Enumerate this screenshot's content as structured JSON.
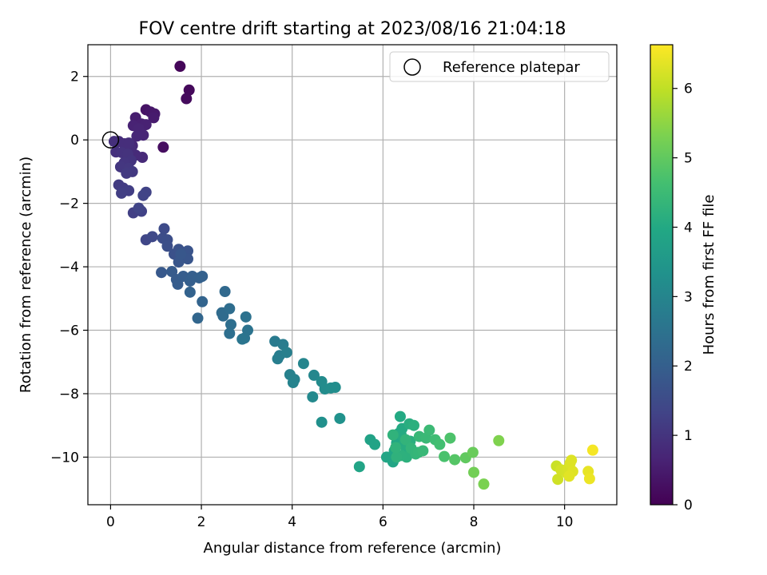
{
  "chart_data": {
    "type": "scatter",
    "title": "FOV centre drift starting at 2023/08/16 21:04:18",
    "xlabel": "Angular distance from reference (arcmin)",
    "ylabel": "Rotation from reference (arcmin)",
    "xlim": [
      -0.5,
      11.15
    ],
    "ylim": [
      -11.5,
      3.0
    ],
    "xticks": [
      0,
      2,
      4,
      6,
      8,
      10
    ],
    "yticks": [
      2,
      0,
      -2,
      -4,
      -6,
      -8,
      -10
    ],
    "xtick_labels": [
      "0",
      "2",
      "4",
      "6",
      "8",
      "10"
    ],
    "ytick_labels": [
      "2",
      "0",
      "−2",
      "−4",
      "−6",
      "−8",
      "−10"
    ],
    "grid": true,
    "legend": {
      "position": "top-right",
      "entries": [
        "Reference platepar"
      ]
    },
    "reference_point": {
      "x": 0,
      "y": 0,
      "marker": "open-circle"
    },
    "colorbar": {
      "label": "Hours from first FF file",
      "colormap": "viridis",
      "range": [
        0,
        6.63
      ],
      "ticks": [
        0,
        1,
        2,
        3,
        4,
        5,
        6
      ],
      "tick_labels": [
        "0",
        "1",
        "2",
        "3",
        "4",
        "5",
        "6"
      ]
    },
    "series": [
      {
        "points": [
          [
            1.53,
            2.32,
            0.1
          ],
          [
            1.73,
            1.57,
            0.15
          ],
          [
            1.67,
            1.3,
            0.18
          ],
          [
            1.16,
            -0.23,
            0.25
          ],
          [
            0.78,
            0.95,
            0.35
          ],
          [
            0.88,
            0.88,
            0.4
          ],
          [
            0.97,
            0.82,
            0.45
          ],
          [
            0.95,
            0.7,
            0.5
          ],
          [
            0.55,
            0.7,
            0.55
          ],
          [
            0.68,
            0.5,
            0.6
          ],
          [
            0.78,
            0.48,
            0.62
          ],
          [
            0.5,
            0.45,
            0.65
          ],
          [
            0.62,
            0.35,
            0.68
          ],
          [
            0.72,
            0.15,
            0.7
          ],
          [
            0.58,
            0.12,
            0.72
          ],
          [
            0.48,
            -0.18,
            0.75
          ],
          [
            0.7,
            -0.55,
            0.78
          ],
          [
            0.55,
            -0.48,
            0.8
          ],
          [
            0.45,
            -0.3,
            0.82
          ],
          [
            0.18,
            -0.05,
            0.85
          ],
          [
            0.3,
            -0.12,
            0.87
          ],
          [
            0.4,
            -0.1,
            0.88
          ],
          [
            0.08,
            -0.05,
            0.9
          ],
          [
            0.12,
            -0.38,
            0.92
          ],
          [
            0.25,
            -0.4,
            0.95
          ],
          [
            0.38,
            -0.45,
            0.97
          ],
          [
            0.45,
            -0.65,
            1.0
          ],
          [
            0.3,
            -0.72,
            1.02
          ],
          [
            0.22,
            -0.85,
            1.05
          ],
          [
            0.4,
            -0.9,
            1.07
          ],
          [
            0.48,
            -1.0,
            1.1
          ],
          [
            0.35,
            -1.05,
            1.12
          ],
          [
            0.18,
            -1.42,
            1.15
          ],
          [
            0.28,
            -1.52,
            1.17
          ],
          [
            0.4,
            -1.6,
            1.2
          ],
          [
            0.24,
            -1.68,
            1.22
          ],
          [
            0.5,
            -2.3,
            1.25
          ],
          [
            0.68,
            -2.25,
            1.28
          ],
          [
            0.78,
            -1.65,
            1.3
          ],
          [
            0.72,
            -1.75,
            1.32
          ],
          [
            0.62,
            -2.15,
            1.35
          ],
          [
            0.78,
            -3.15,
            1.4
          ],
          [
            0.92,
            -3.05,
            1.45
          ],
          [
            1.18,
            -2.8,
            1.5
          ],
          [
            1.15,
            -3.1,
            1.55
          ],
          [
            1.25,
            -3.15,
            1.58
          ],
          [
            1.25,
            -3.35,
            1.6
          ],
          [
            1.4,
            -3.6,
            1.65
          ],
          [
            1.5,
            -3.45,
            1.68
          ],
          [
            1.6,
            -3.65,
            1.7
          ],
          [
            1.7,
            -3.5,
            1.72
          ],
          [
            1.7,
            -3.75,
            1.75
          ],
          [
            1.5,
            -3.85,
            1.78
          ],
          [
            1.55,
            -3.6,
            1.8
          ],
          [
            1.12,
            -4.18,
            1.85
          ],
          [
            1.35,
            -4.15,
            1.88
          ],
          [
            1.45,
            -4.4,
            1.9
          ],
          [
            1.48,
            -4.55,
            1.92
          ],
          [
            1.6,
            -4.3,
            1.95
          ],
          [
            1.75,
            -4.45,
            1.98
          ],
          [
            1.8,
            -4.3,
            2.0
          ],
          [
            1.95,
            -4.35,
            2.02
          ],
          [
            2.02,
            -4.3,
            2.05
          ],
          [
            1.75,
            -4.8,
            2.08
          ],
          [
            2.02,
            -5.1,
            2.12
          ],
          [
            1.92,
            -5.62,
            2.18
          ],
          [
            2.52,
            -4.78,
            2.25
          ],
          [
            2.45,
            -5.45,
            2.3
          ],
          [
            2.48,
            -5.55,
            2.32
          ],
          [
            2.62,
            -5.32,
            2.35
          ],
          [
            2.65,
            -5.82,
            2.4
          ],
          [
            2.62,
            -6.1,
            2.42
          ],
          [
            2.98,
            -5.58,
            2.48
          ],
          [
            3.02,
            -6.0,
            2.52
          ],
          [
            2.95,
            -6.25,
            2.55
          ],
          [
            2.9,
            -6.28,
            2.58
          ],
          [
            3.62,
            -6.35,
            2.7
          ],
          [
            3.8,
            -6.45,
            2.75
          ],
          [
            3.72,
            -6.8,
            2.78
          ],
          [
            3.68,
            -6.9,
            2.8
          ],
          [
            3.88,
            -6.7,
            2.83
          ],
          [
            3.95,
            -7.4,
            2.88
          ],
          [
            4.05,
            -7.55,
            2.92
          ],
          [
            4.02,
            -7.65,
            2.95
          ],
          [
            4.25,
            -7.05,
            3.0
          ],
          [
            4.48,
            -7.42,
            3.05
          ],
          [
            4.45,
            -8.1,
            3.1
          ],
          [
            4.65,
            -7.62,
            3.15
          ],
          [
            4.72,
            -7.85,
            3.18
          ],
          [
            4.85,
            -7.82,
            3.2
          ],
          [
            4.95,
            -7.8,
            3.22
          ],
          [
            4.65,
            -8.9,
            3.28
          ],
          [
            5.05,
            -8.78,
            3.35
          ],
          [
            5.48,
            -10.3,
            3.85
          ],
          [
            5.72,
            -9.45,
            3.8
          ],
          [
            5.82,
            -9.6,
            3.82
          ],
          [
            6.08,
            -10.0,
            3.88
          ],
          [
            6.22,
            -10.15,
            3.9
          ],
          [
            6.25,
            -9.8,
            3.92
          ],
          [
            6.3,
            -9.55,
            3.95
          ],
          [
            6.35,
            -9.25,
            3.98
          ],
          [
            6.38,
            -8.72,
            4.0
          ],
          [
            6.42,
            -9.1,
            4.02
          ],
          [
            6.4,
            -9.3,
            4.05
          ],
          [
            6.45,
            -9.6,
            4.07
          ],
          [
            6.52,
            -9.75,
            4.1
          ],
          [
            6.58,
            -8.95,
            4.12
          ],
          [
            6.6,
            -9.5,
            4.15
          ],
          [
            6.68,
            -9.0,
            4.17
          ],
          [
            6.52,
            -10.0,
            4.2
          ],
          [
            6.4,
            -9.95,
            4.22
          ],
          [
            6.3,
            -10.0,
            4.25
          ],
          [
            6.22,
            -9.3,
            4.27
          ],
          [
            6.28,
            -9.7,
            4.28
          ],
          [
            6.5,
            -9.45,
            4.3
          ],
          [
            6.62,
            -9.72,
            4.32
          ],
          [
            6.72,
            -9.9,
            4.35
          ],
          [
            6.78,
            -9.85,
            4.37
          ],
          [
            6.8,
            -9.35,
            4.4
          ],
          [
            6.88,
            -9.8,
            4.42
          ],
          [
            6.95,
            -9.4,
            4.45
          ],
          [
            7.02,
            -9.15,
            4.48
          ],
          [
            7.15,
            -9.45,
            4.55
          ],
          [
            7.25,
            -9.6,
            4.6
          ],
          [
            7.35,
            -9.98,
            4.7
          ],
          [
            7.48,
            -9.4,
            4.75
          ],
          [
            7.58,
            -10.08,
            4.85
          ],
          [
            7.82,
            -10.02,
            5.0
          ],
          [
            7.98,
            -9.85,
            5.1
          ],
          [
            8.0,
            -10.48,
            5.2
          ],
          [
            8.22,
            -10.85,
            5.3
          ],
          [
            8.55,
            -9.48,
            5.35
          ],
          [
            9.82,
            -10.28,
            6.1
          ],
          [
            9.85,
            -10.7,
            6.15
          ],
          [
            9.92,
            -10.4,
            6.2
          ],
          [
            10.05,
            -10.5,
            6.22
          ],
          [
            10.08,
            -10.35,
            6.25
          ],
          [
            10.12,
            -10.2,
            6.28
          ],
          [
            10.15,
            -10.1,
            6.3
          ],
          [
            10.18,
            -10.45,
            6.32
          ],
          [
            10.1,
            -10.6,
            6.34
          ],
          [
            10.52,
            -10.45,
            6.4
          ],
          [
            10.55,
            -10.68,
            6.45
          ],
          [
            10.62,
            -9.78,
            6.55
          ]
        ]
      }
    ]
  }
}
